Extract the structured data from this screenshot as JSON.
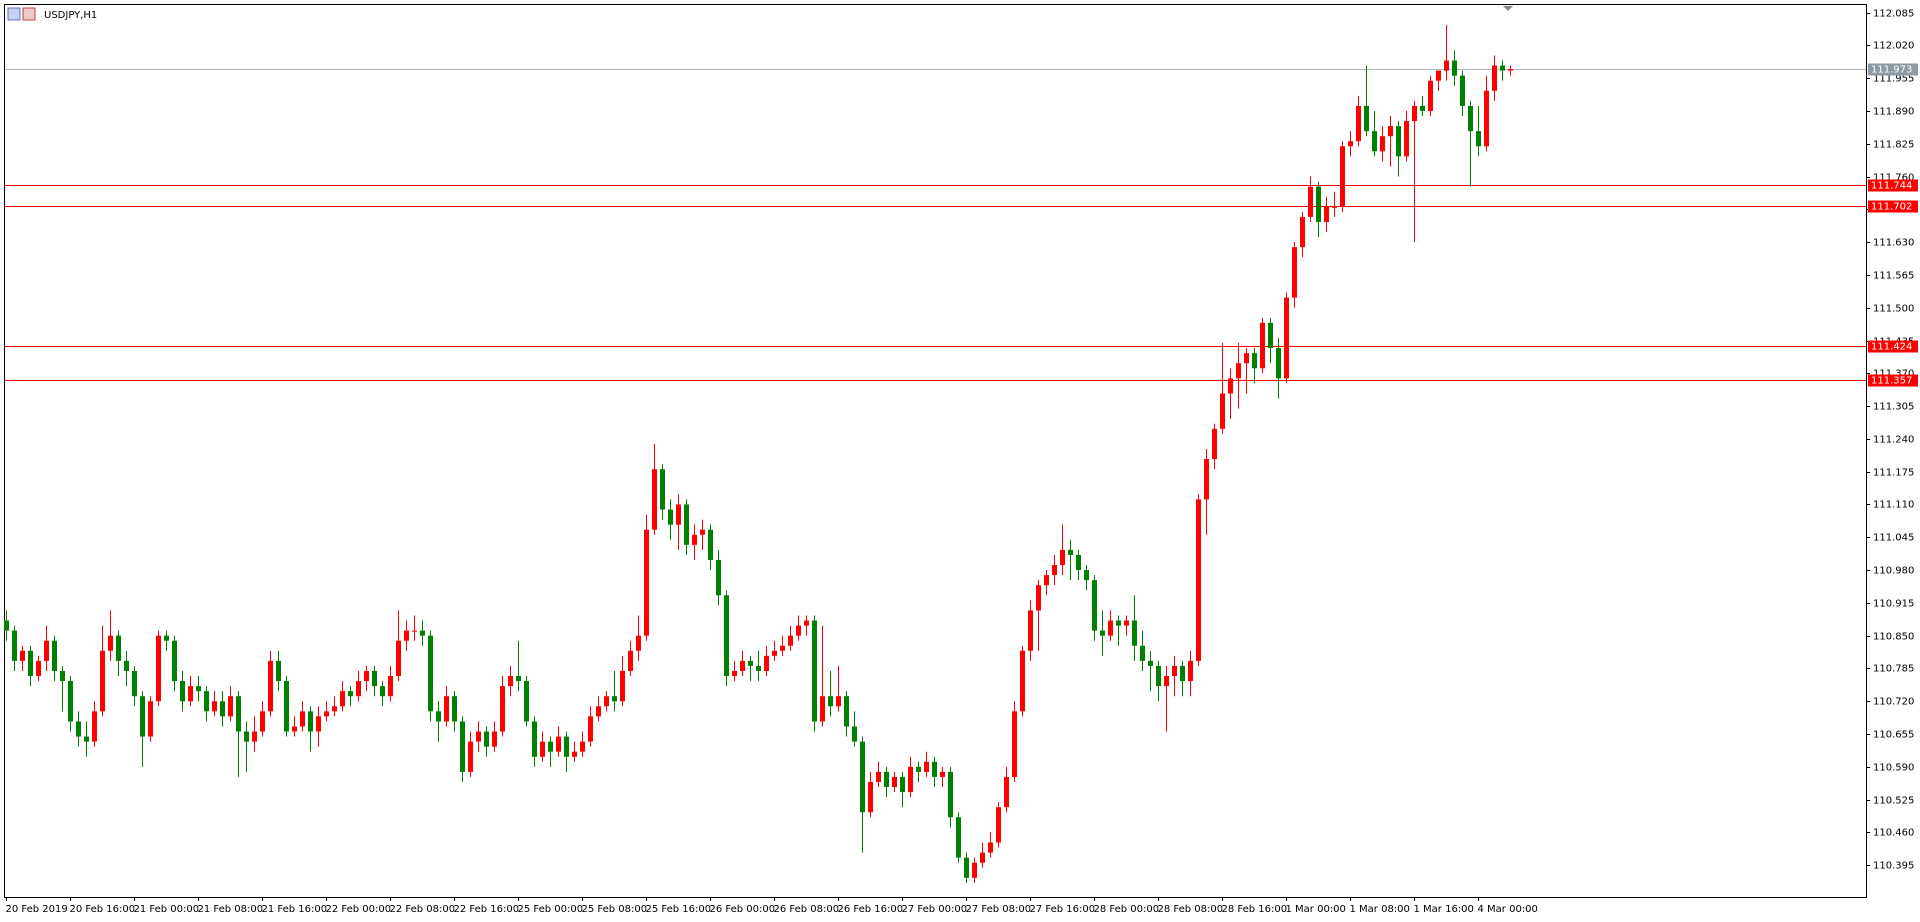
{
  "chart_data": {
    "type": "candlestick",
    "title": "USDJPY,H1",
    "up_color": "#ff0000",
    "down_color": "#008000",
    "ylim": [
      110.332,
      112.1
    ],
    "yticks": [
      112.085,
      {
        "value": 112.02,
        "label": "112.020"
      },
      111.955,
      {
        "value": 111.89,
        "label": "111.890"
      },
      111.825,
      {
        "value": 111.76,
        "label": "111.760"
      },
      111.695,
      {
        "value": 111.63,
        "label": "111.630"
      },
      111.565,
      {
        "value": 111.5,
        "label": "111.500"
      },
      111.435,
      {
        "value": 111.37,
        "label": "111.370"
      },
      111.305,
      {
        "value": 111.24,
        "label": "111.240"
      },
      111.175,
      {
        "value": 111.11,
        "label": "111.110"
      },
      111.045,
      {
        "value": 110.98,
        "label": "110.980"
      },
      110.915,
      {
        "value": 110.85,
        "label": "110.850"
      },
      110.785,
      {
        "value": 110.72,
        "label": "110.720"
      },
      110.655,
      {
        "value": 110.59,
        "label": "110.590"
      },
      110.525,
      {
        "value": 110.46,
        "label": "110.460"
      },
      110.395
    ],
    "time_labels": [
      "20 Feb 2019",
      "20 Feb 16:00",
      "21 Feb 00:00",
      "21 Feb 08:00",
      "21 Feb 16:00",
      "22 Feb 00:00",
      "22 Feb 08:00",
      "22 Feb 16:00",
      "25 Feb 00:00",
      "25 Feb 08:00",
      "25 Feb 16:00",
      "26 Feb 00:00",
      "26 Feb 08:00",
      "26 Feb 16:00",
      "27 Feb 00:00",
      "27 Feb 08:00",
      "27 Feb 16:00",
      "28 Feb 00:00",
      "28 Feb 08:00",
      "28 Feb 16:00",
      "1 Mar 00:00",
      "1 Mar 08:00",
      "1 Mar 16:00",
      "4 Mar 00:00"
    ],
    "levels": [
      111.744,
      111.702,
      111.424,
      111.357
    ],
    "level_color": "#ff0000",
    "current_price": 111.973,
    "candles": [
      [
        110.88,
        110.9,
        110.84,
        110.86
      ],
      [
        110.86,
        110.87,
        110.78,
        110.8
      ],
      [
        110.8,
        110.83,
        110.78,
        110.82
      ],
      [
        110.82,
        110.83,
        110.75,
        110.77
      ],
      [
        110.77,
        110.81,
        110.76,
        110.8
      ],
      [
        110.8,
        110.87,
        110.78,
        110.84
      ],
      [
        110.84,
        110.85,
        110.76,
        110.78
      ],
      [
        110.78,
        110.79,
        110.7,
        110.76
      ],
      [
        110.76,
        110.77,
        110.66,
        110.68
      ],
      [
        110.68,
        110.7,
        110.63,
        110.65
      ],
      [
        110.65,
        110.68,
        110.61,
        110.64
      ],
      [
        110.64,
        110.72,
        110.63,
        110.7
      ],
      [
        110.7,
        110.87,
        110.69,
        110.82
      ],
      [
        110.82,
        110.9,
        110.8,
        110.85
      ],
      [
        110.85,
        110.86,
        110.77,
        110.8
      ],
      [
        110.8,
        110.82,
        110.75,
        110.78
      ],
      [
        110.78,
        110.79,
        110.71,
        110.73
      ],
      [
        110.73,
        110.74,
        110.59,
        110.65
      ],
      [
        110.65,
        110.73,
        110.64,
        110.72
      ],
      [
        110.72,
        110.86,
        110.71,
        110.85
      ],
      [
        110.85,
        110.86,
        110.82,
        110.84
      ],
      [
        110.84,
        110.85,
        110.74,
        110.76
      ],
      [
        110.76,
        110.78,
        110.7,
        110.72
      ],
      [
        110.72,
        110.77,
        110.71,
        110.75
      ],
      [
        110.75,
        110.77,
        110.72,
        110.74
      ],
      [
        110.74,
        110.75,
        110.68,
        110.7
      ],
      [
        110.7,
        110.74,
        110.69,
        110.72
      ],
      [
        110.72,
        110.74,
        110.67,
        110.69
      ],
      [
        110.69,
        110.75,
        110.68,
        110.73
      ],
      [
        110.73,
        110.74,
        110.57,
        110.66
      ],
      [
        110.66,
        110.68,
        110.58,
        110.64
      ],
      [
        110.64,
        110.69,
        110.62,
        110.66
      ],
      [
        110.66,
        110.72,
        110.65,
        110.7
      ],
      [
        110.7,
        110.82,
        110.69,
        110.8
      ],
      [
        110.8,
        110.82,
        110.74,
        110.76
      ],
      [
        110.76,
        110.77,
        110.65,
        110.66
      ],
      [
        110.66,
        110.69,
        110.65,
        110.67
      ],
      [
        110.67,
        110.72,
        110.66,
        110.7
      ],
      [
        110.7,
        110.71,
        110.62,
        110.66
      ],
      [
        110.66,
        110.71,
        110.63,
        110.69
      ],
      [
        110.69,
        110.72,
        110.68,
        110.7
      ],
      [
        110.7,
        110.73,
        110.69,
        110.71
      ],
      [
        110.71,
        110.76,
        110.7,
        110.74
      ],
      [
        110.74,
        110.75,
        110.71,
        110.73
      ],
      [
        110.73,
        110.78,
        110.72,
        110.76
      ],
      [
        110.76,
        110.79,
        110.74,
        110.78
      ],
      [
        110.78,
        110.79,
        110.73,
        110.75
      ],
      [
        110.75,
        110.76,
        110.71,
        110.73
      ],
      [
        110.73,
        110.79,
        110.72,
        110.77
      ],
      [
        110.77,
        110.9,
        110.76,
        110.84
      ],
      [
        110.84,
        110.88,
        110.82,
        110.86
      ],
      [
        110.86,
        110.89,
        110.84,
        110.86
      ],
      [
        110.86,
        110.88,
        110.83,
        110.85
      ],
      [
        110.85,
        110.86,
        110.68,
        110.7
      ],
      [
        110.7,
        110.72,
        110.64,
        110.68
      ],
      [
        110.68,
        110.75,
        110.67,
        110.73
      ],
      [
        110.73,
        110.74,
        110.66,
        110.68
      ],
      [
        110.68,
        110.69,
        110.56,
        110.58
      ],
      [
        110.58,
        110.66,
        110.57,
        110.64
      ],
      [
        110.64,
        110.68,
        110.62,
        110.66
      ],
      [
        110.66,
        110.67,
        110.61,
        110.63
      ],
      [
        110.63,
        110.68,
        110.62,
        110.66
      ],
      [
        110.66,
        110.77,
        110.65,
        110.75
      ],
      [
        110.75,
        110.79,
        110.73,
        110.77
      ],
      [
        110.77,
        110.84,
        110.74,
        110.76
      ],
      [
        110.76,
        110.77,
        110.67,
        110.68
      ],
      [
        110.68,
        110.69,
        110.59,
        110.61
      ],
      [
        110.61,
        110.66,
        110.6,
        110.64
      ],
      [
        110.64,
        110.65,
        110.59,
        110.62
      ],
      [
        110.62,
        110.67,
        110.61,
        110.65
      ],
      [
        110.65,
        110.66,
        110.58,
        110.61
      ],
      [
        110.61,
        110.64,
        110.6,
        110.62
      ],
      [
        110.62,
        110.66,
        110.61,
        110.64
      ],
      [
        110.64,
        110.71,
        110.63,
        110.69
      ],
      [
        110.69,
        110.73,
        110.68,
        110.71
      ],
      [
        110.71,
        110.74,
        110.7,
        110.73
      ],
      [
        110.73,
        110.78,
        110.7,
        110.72
      ],
      [
        110.72,
        110.81,
        110.71,
        110.78
      ],
      [
        110.78,
        110.84,
        110.77,
        110.82
      ],
      [
        110.82,
        110.89,
        110.8,
        110.85
      ],
      [
        110.85,
        111.09,
        110.84,
        111.06
      ],
      [
        111.06,
        111.23,
        111.05,
        111.18
      ],
      [
        111.18,
        111.19,
        111.08,
        111.1
      ],
      [
        111.1,
        111.12,
        111.04,
        111.07
      ],
      [
        111.07,
        111.13,
        111.02,
        111.11
      ],
      [
        111.11,
        111.12,
        111.01,
        111.03
      ],
      [
        111.03,
        111.07,
        111.0,
        111.05
      ],
      [
        111.05,
        111.08,
        111.02,
        111.06
      ],
      [
        111.06,
        111.07,
        110.98,
        111.0
      ],
      [
        111.0,
        111.02,
        110.91,
        110.93
      ],
      [
        110.93,
        110.94,
        110.75,
        110.77
      ],
      [
        110.77,
        110.8,
        110.76,
        110.78
      ],
      [
        110.78,
        110.82,
        110.77,
        110.8
      ],
      [
        110.8,
        110.81,
        110.76,
        110.79
      ],
      [
        110.79,
        110.82,
        110.76,
        110.78
      ],
      [
        110.78,
        110.83,
        110.77,
        110.81
      ],
      [
        110.81,
        110.84,
        110.8,
        110.82
      ],
      [
        110.82,
        110.85,
        110.81,
        110.83
      ],
      [
        110.83,
        110.87,
        110.82,
        110.85
      ],
      [
        110.85,
        110.89,
        110.84,
        110.87
      ],
      [
        110.87,
        110.89,
        110.85,
        110.88
      ],
      [
        110.88,
        110.89,
        110.66,
        110.68
      ],
      [
        110.68,
        110.87,
        110.67,
        110.73
      ],
      [
        110.73,
        110.78,
        110.69,
        110.71
      ],
      [
        110.71,
        110.79,
        110.7,
        110.73
      ],
      [
        110.73,
        110.74,
        110.65,
        110.67
      ],
      [
        110.67,
        110.7,
        110.63,
        110.64
      ],
      [
        110.64,
        110.65,
        110.42,
        110.5
      ],
      [
        110.5,
        110.58,
        110.49,
        110.56
      ],
      [
        110.56,
        110.6,
        110.55,
        110.58
      ],
      [
        110.58,
        110.59,
        110.53,
        110.55
      ],
      [
        110.55,
        110.58,
        110.54,
        110.57
      ],
      [
        110.57,
        110.58,
        110.51,
        110.54
      ],
      [
        110.54,
        110.61,
        110.53,
        110.59
      ],
      [
        110.59,
        110.6,
        110.56,
        110.58
      ],
      [
        110.58,
        110.62,
        110.57,
        110.6
      ],
      [
        110.6,
        110.61,
        110.55,
        110.57
      ],
      [
        110.57,
        110.59,
        110.55,
        110.58
      ],
      [
        110.58,
        110.59,
        110.47,
        110.49
      ],
      [
        110.49,
        110.5,
        110.4,
        110.41
      ],
      [
        110.41,
        110.42,
        110.36,
        110.37
      ],
      [
        110.37,
        110.41,
        110.36,
        110.4
      ],
      [
        110.4,
        110.44,
        110.39,
        110.42
      ],
      [
        110.42,
        110.46,
        110.41,
        110.44
      ],
      [
        110.44,
        110.52,
        110.43,
        110.51
      ],
      [
        110.51,
        110.59,
        110.5,
        110.57
      ],
      [
        110.57,
        110.72,
        110.56,
        110.7
      ],
      [
        110.7,
        110.83,
        110.69,
        110.82
      ],
      [
        110.82,
        110.92,
        110.8,
        110.9
      ],
      [
        110.9,
        110.96,
        110.82,
        110.95
      ],
      [
        110.95,
        110.98,
        110.93,
        110.97
      ],
      [
        110.97,
        111.01,
        110.95,
        110.99
      ],
      [
        110.99,
        111.07,
        110.97,
        111.02
      ],
      [
        111.02,
        111.04,
        110.96,
        111.01
      ],
      [
        111.01,
        111.02,
        110.96,
        110.98
      ],
      [
        110.98,
        110.99,
        110.94,
        110.96
      ],
      [
        110.96,
        110.97,
        110.84,
        110.86
      ],
      [
        110.86,
        110.9,
        110.81,
        110.85
      ],
      [
        110.85,
        110.9,
        110.84,
        110.88
      ],
      [
        110.88,
        110.89,
        110.83,
        110.87
      ],
      [
        110.87,
        110.89,
        110.85,
        110.88
      ],
      [
        110.88,
        110.93,
        110.8,
        110.83
      ],
      [
        110.83,
        110.86,
        110.78,
        110.8
      ],
      [
        110.8,
        110.82,
        110.74,
        110.79
      ],
      [
        110.79,
        110.8,
        110.72,
        110.75
      ],
      [
        110.75,
        110.79,
        110.66,
        110.77
      ],
      [
        110.77,
        110.81,
        110.73,
        110.79
      ],
      [
        110.79,
        110.8,
        110.73,
        110.76
      ],
      [
        110.76,
        110.82,
        110.73,
        110.8
      ],
      [
        110.8,
        111.13,
        110.79,
        111.12
      ],
      [
        111.12,
        111.22,
        111.05,
        111.2
      ],
      [
        111.2,
        111.27,
        111.18,
        111.26
      ],
      [
        111.26,
        111.43,
        111.25,
        111.33
      ],
      [
        111.33,
        111.38,
        111.28,
        111.36
      ],
      [
        111.36,
        111.43,
        111.3,
        111.39
      ],
      [
        111.39,
        111.42,
        111.33,
        111.41
      ],
      [
        111.41,
        111.42,
        111.35,
        111.38
      ],
      [
        111.38,
        111.48,
        111.37,
        111.47
      ],
      [
        111.47,
        111.48,
        111.39,
        111.42
      ],
      [
        111.42,
        111.44,
        111.32,
        111.36
      ],
      [
        111.36,
        111.53,
        111.35,
        111.52
      ],
      [
        111.52,
        111.63,
        111.5,
        111.62
      ],
      [
        111.62,
        111.69,
        111.6,
        111.68
      ],
      [
        111.68,
        111.76,
        111.67,
        111.74
      ],
      [
        111.74,
        111.75,
        111.64,
        111.67
      ],
      [
        111.67,
        111.72,
        111.65,
        111.7
      ],
      [
        111.7,
        111.73,
        111.68,
        111.7
      ],
      [
        111.7,
        111.83,
        111.69,
        111.82
      ],
      [
        111.82,
        111.85,
        111.8,
        111.83
      ],
      [
        111.83,
        111.92,
        111.82,
        111.9
      ],
      [
        111.9,
        111.98,
        111.84,
        111.85
      ],
      [
        111.85,
        111.89,
        111.8,
        111.81
      ],
      [
        111.81,
        111.86,
        111.79,
        111.84
      ],
      [
        111.84,
        111.88,
        111.78,
        111.86
      ],
      [
        111.86,
        111.87,
        111.76,
        111.8
      ],
      [
        111.8,
        111.89,
        111.79,
        111.87
      ],
      [
        111.87,
        111.91,
        111.63,
        111.9
      ],
      [
        111.9,
        111.92,
        111.88,
        111.89
      ],
      [
        111.89,
        111.96,
        111.88,
        111.95
      ],
      [
        111.95,
        111.97,
        111.93,
        111.97
      ],
      [
        111.97,
        112.06,
        111.95,
        111.99
      ],
      [
        111.99,
        112.01,
        111.94,
        111.96
      ],
      [
        111.96,
        111.97,
        111.88,
        111.9
      ],
      [
        111.9,
        111.91,
        111.74,
        111.85
      ],
      [
        111.85,
        111.9,
        111.8,
        111.82
      ],
      [
        111.82,
        111.96,
        111.81,
        111.93
      ],
      [
        111.93,
        112.0,
        111.91,
        111.98
      ],
      [
        111.98,
        111.99,
        111.95,
        111.97
      ],
      [
        111.97,
        111.98,
        111.96,
        111.973
      ]
    ]
  }
}
